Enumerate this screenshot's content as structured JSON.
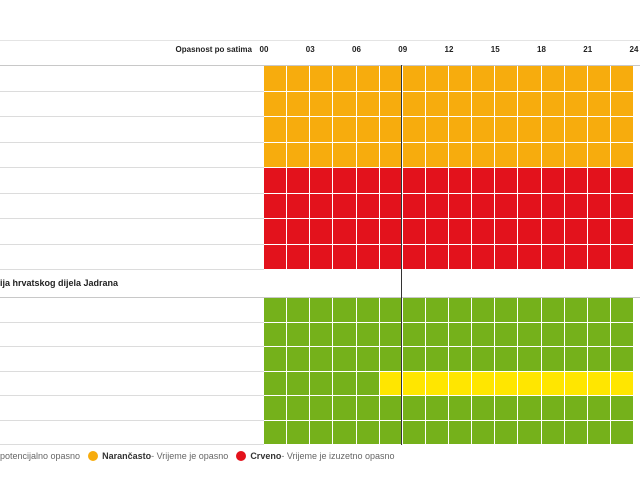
{
  "header": {
    "label": "Opasnost po satima",
    "hours": [
      "00",
      "03",
      "06",
      "09",
      "12",
      "15",
      "18",
      "21",
      "24"
    ]
  },
  "region": {
    "title": "ija hrvatskog dijela Jadrana"
  },
  "colors": {
    "orange": "#f7ac0d",
    "red": "#e3121c",
    "green": "#75b11b",
    "yellow": "#ffe600"
  },
  "blocks": [
    {
      "color": "orange",
      "rows": 4
    },
    {
      "color": "red",
      "rows": 4
    },
    {
      "color": "green",
      "rows": 6,
      "yellow_row": 3,
      "yellow_from_hour": 7.5
    }
  ],
  "current_hour": "09",
  "legend": {
    "yellow_text": "potencijalno opasno",
    "orange_name": "Narančasto",
    "orange_text": " - Vrijeme je opasno",
    "red_name": "Crveno",
    "red_text": " - Vrijeme je izuzetno opasno"
  }
}
